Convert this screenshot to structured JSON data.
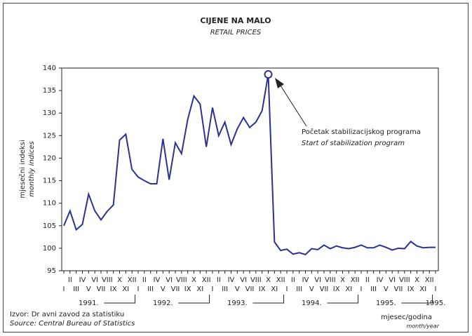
{
  "chart_data": {
    "type": "line",
    "title": "CIJENE NA MALO",
    "subtitle": "RETAIL PRICES",
    "y_label": "mjesečni indeksi",
    "y_label_en": "monthly indices",
    "x_label": "mjesec/godina",
    "x_label_en": "month/year",
    "annotation": "Početak stabilizacijskog programa",
    "annotation_en": "Start of stabilization program",
    "source": "Izvor: Dr avni zavod za statistiku",
    "source_en": "Source: Central Bureau of Statistics",
    "categories": [
      "I",
      "II",
      "III",
      "IV",
      "V",
      "VI",
      "VII",
      "VIII",
      "IX",
      "X",
      "XI",
      "XII",
      "I",
      "II",
      "III",
      "IV",
      "V",
      "VI",
      "VII",
      "VIII",
      "IX",
      "X",
      "XI",
      "XII",
      "I",
      "II",
      "III",
      "IV",
      "V",
      "VI",
      "VII",
      "VIII",
      "IX",
      "X",
      "XI",
      "XII",
      "I",
      "II",
      "III",
      "IV",
      "V",
      "VI",
      "VII",
      "VIII",
      "IX",
      "X",
      "XI",
      "XII",
      "I",
      "II",
      "III",
      "IV",
      "V",
      "VI",
      "VII",
      "VIII",
      "IX",
      "X",
      "XI",
      "XII",
      "I"
    ],
    "year_labels": [
      "1991.",
      "1992.",
      "1993.",
      "1994.",
      "1995.",
      "1995."
    ],
    "series": [
      {
        "name": "Retail prices",
        "color": "#2e3192",
        "values": [
          105,
          108.3,
          104.1,
          105.3,
          112,
          108.3,
          106.3,
          108.2,
          109.6,
          124,
          125.3,
          117.5,
          115.8,
          115,
          114.3,
          114.3,
          124.3,
          115.2,
          123.4,
          121,
          128.6,
          133.8,
          132,
          122.5,
          131.2,
          125,
          128,
          123,
          126.5,
          129,
          126.8,
          128,
          130.5,
          138.6,
          101.4,
          99.5,
          99.8,
          98.7,
          99,
          98.6,
          99.9,
          99.7,
          100.7,
          99.9,
          100.5,
          100.1,
          99.9,
          100.2,
          100.7,
          100.1,
          100.1,
          100.7,
          100.2,
          99.6,
          100,
          99.9,
          101.5,
          100.5,
          100.1,
          100.2,
          100.2
        ]
      }
    ],
    "highlight_index": 33,
    "ylim": [
      95,
      140
    ],
    "yticks": [
      95,
      100,
      105,
      110,
      115,
      120,
      125,
      130,
      135,
      140
    ]
  }
}
